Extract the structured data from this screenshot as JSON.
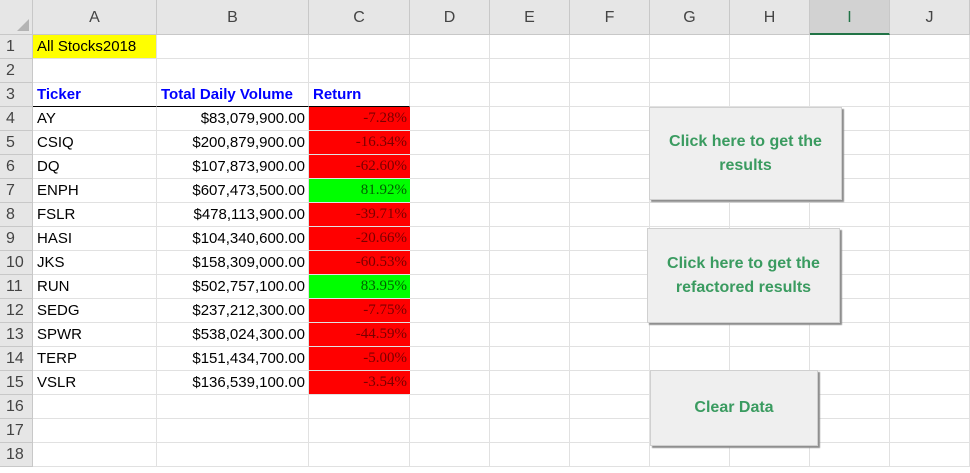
{
  "sheet": {
    "columns": [
      "A",
      "B",
      "C",
      "D",
      "E",
      "F",
      "G",
      "H",
      "I",
      "J"
    ],
    "selected_column": "I",
    "rows": [
      "1",
      "2",
      "3",
      "4",
      "5",
      "6",
      "7",
      "8",
      "9",
      "10",
      "11",
      "12",
      "13",
      "14",
      "15",
      "16",
      "17",
      "18"
    ],
    "title": "All Stocks2018",
    "headers": {
      "ticker": "Ticker",
      "volume": "Total Daily Volume",
      "return": "Return"
    },
    "stocks": [
      {
        "ticker": "AY",
        "volume": "$83,079,900.00",
        "return": "-7.28%",
        "status": "negative"
      },
      {
        "ticker": "CSIQ",
        "volume": "$200,879,900.00",
        "return": "-16.34%",
        "status": "negative"
      },
      {
        "ticker": "DQ",
        "volume": "$107,873,900.00",
        "return": "-62.60%",
        "status": "negative"
      },
      {
        "ticker": "ENPH",
        "volume": "$607,473,500.00",
        "return": "81.92%",
        "status": "positive"
      },
      {
        "ticker": "FSLR",
        "volume": "$478,113,900.00",
        "return": "-39.71%",
        "status": "negative"
      },
      {
        "ticker": "HASI",
        "volume": "$104,340,600.00",
        "return": "-20.66%",
        "status": "negative"
      },
      {
        "ticker": "JKS",
        "volume": "$158,309,000.00",
        "return": "-60.53%",
        "status": "negative"
      },
      {
        "ticker": "RUN",
        "volume": "$502,757,100.00",
        "return": "83.95%",
        "status": "positive"
      },
      {
        "ticker": "SEDG",
        "volume": "$237,212,300.00",
        "return": "-7.75%",
        "status": "negative"
      },
      {
        "ticker": "SPWR",
        "volume": "$538,024,300.00",
        "return": "-44.59%",
        "status": "negative"
      },
      {
        "ticker": "TERP",
        "volume": "$151,434,700.00",
        "return": "-5.00%",
        "status": "negative"
      },
      {
        "ticker": "VSLR",
        "volume": "$136,539,100.00",
        "return": "-3.54%",
        "status": "negative"
      }
    ]
  },
  "buttons": {
    "get_results": "Click here to get the results",
    "get_refactored": "Click here to get the refactored results",
    "clear": "Clear Data"
  },
  "colors": {
    "positive": "#00ff00",
    "negative": "#ff0000",
    "title_fill": "#ffff00",
    "header_text": "#0000ff",
    "button_text": "#3a9b60"
  }
}
